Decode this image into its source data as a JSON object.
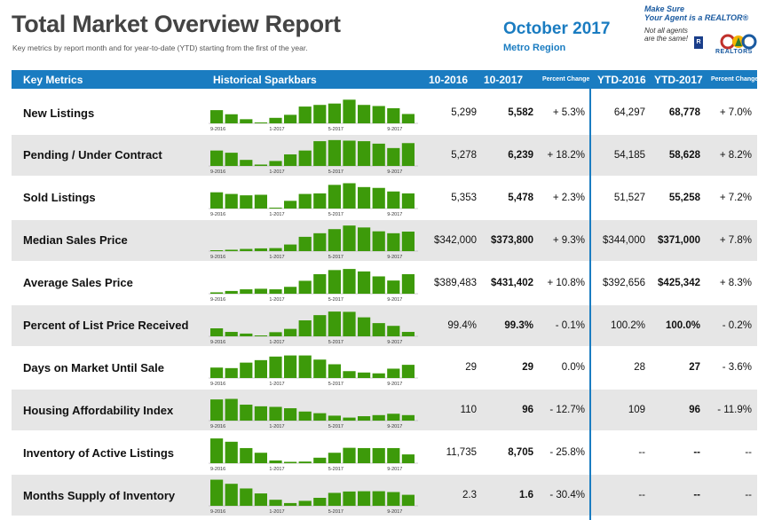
{
  "report": {
    "title": "Total Market Overview Report",
    "subtitle": "Key metrics by report month and for year-to-date (YTD) starting from the first of the year.",
    "period": "October 2017",
    "region": "Metro Region"
  },
  "promo": {
    "line1": "Make Sure",
    "line2": "Your Agent is a REALTOR®",
    "line3": "Not all agents",
    "line4": "are the same!",
    "realtors_text": "REALTORS",
    "rl_mark": "R"
  },
  "header": {
    "key_metrics": "Key Metrics",
    "sparkbars": "Historical Sparkbars",
    "col1": "10-2016",
    "col2": "10-2017",
    "pct": "Percent Change",
    "col3": "YTD-2016",
    "col4": "YTD-2017",
    "pct2": "Percent Change"
  },
  "spark_labels": [
    "9-2016",
    "1-2017",
    "5-2017",
    "9-2017"
  ],
  "colors": {
    "accent": "#1a7cc1",
    "bar": "#3d9a0a",
    "shade": "#e6e6e6"
  },
  "rows": [
    {
      "metric": "New Listings",
      "v2016": "5,299",
      "v2017": "5,582",
      "pct": "+ 5.3%",
      "ytd2016": "64,297",
      "ytd2017": "68,778",
      "ytdpct": "+ 7.0%",
      "spark": [
        0.48,
        0.33,
        0.15,
        0.03,
        0.2,
        0.31,
        0.61,
        0.67,
        0.72,
        0.86,
        0.67,
        0.63,
        0.55,
        0.34
      ]
    },
    {
      "metric": "Pending / Under Contract",
      "v2016": "5,278",
      "v2017": "6,239",
      "pct": "+ 18.2%",
      "ytd2016": "54,185",
      "ytd2017": "58,628",
      "ytdpct": "+ 8.2%",
      "spark": [
        0.56,
        0.48,
        0.22,
        0.05,
        0.18,
        0.42,
        0.56,
        0.9,
        0.94,
        0.92,
        0.9,
        0.81,
        0.65,
        0.83
      ]
    },
    {
      "metric": "Sold Listings",
      "v2016": "5,353",
      "v2017": "5,478",
      "pct": "+ 2.3%",
      "ytd2016": "51,527",
      "ytd2017": "55,258",
      "ytdpct": "+ 7.2%",
      "spark": [
        0.59,
        0.53,
        0.48,
        0.5,
        0.02,
        0.28,
        0.53,
        0.55,
        0.86,
        0.92,
        0.78,
        0.75,
        0.62,
        0.55
      ]
    },
    {
      "metric": "Median Sales Price",
      "v2016": "$342,000",
      "v2017": "$373,800",
      "pct": "+ 9.3%",
      "ytd2016": "$344,000",
      "ytd2017": "$371,000",
      "ytdpct": "+ 7.8%",
      "spark": [
        0.03,
        0.05,
        0.08,
        0.1,
        0.11,
        0.24,
        0.52,
        0.65,
        0.8,
        0.93,
        0.86,
        0.72,
        0.65,
        0.71
      ]
    },
    {
      "metric": "Average Sales Price",
      "v2016": "$389,483",
      "v2017": "$431,402",
      "pct": "+ 10.8%",
      "ytd2016": "$392,656",
      "ytd2017": "$425,342",
      "ytdpct": "+ 8.3%",
      "spark": [
        0.05,
        0.1,
        0.16,
        0.18,
        0.16,
        0.25,
        0.47,
        0.71,
        0.86,
        0.9,
        0.81,
        0.63,
        0.48,
        0.71
      ]
    },
    {
      "metric": "Percent of List Price Received",
      "v2016": "99.4%",
      "v2017": "99.3%",
      "pct": "- 0.1%",
      "ytd2016": "100.2%",
      "ytd2017": "100.0%",
      "ytdpct": "- 0.2%",
      "spark": [
        0.29,
        0.16,
        0.1,
        0.02,
        0.15,
        0.27,
        0.58,
        0.77,
        0.9,
        0.89,
        0.69,
        0.48,
        0.38,
        0.16
      ]
    },
    {
      "metric": "Days on Market Until Sale",
      "v2016": "29",
      "v2017": "29",
      "pct": "0.0%",
      "ytd2016": "28",
      "ytd2017": "27",
      "ytdpct": "- 3.6%",
      "spark": [
        0.38,
        0.36,
        0.56,
        0.65,
        0.78,
        0.82,
        0.82,
        0.67,
        0.5,
        0.25,
        0.2,
        0.17,
        0.34,
        0.48
      ]
    },
    {
      "metric": "Housing Affordability Index",
      "v2016": "110",
      "v2017": "96",
      "pct": "- 12.7%",
      "ytd2016": "109",
      "ytd2017": "96",
      "ytdpct": "- 11.9%",
      "spark": [
        0.77,
        0.79,
        0.58,
        0.52,
        0.5,
        0.45,
        0.33,
        0.27,
        0.18,
        0.11,
        0.16,
        0.2,
        0.25,
        0.2
      ]
    },
    {
      "metric": "Inventory of Active Listings",
      "v2016": "11,735",
      "v2017": "8,705",
      "pct": "- 25.8%",
      "ytd2016": "--",
      "ytd2017": "--",
      "ytdpct": "--",
      "spark": [
        0.9,
        0.78,
        0.55,
        0.38,
        0.1,
        0.05,
        0.06,
        0.2,
        0.38,
        0.56,
        0.55,
        0.55,
        0.55,
        0.32
      ]
    },
    {
      "metric": "Months Supply of Inventory",
      "v2016": "2.3",
      "v2017": "1.6",
      "pct": "- 30.4%",
      "ytd2016": "--",
      "ytd2017": "--",
      "ytdpct": "--",
      "spark": [
        0.95,
        0.8,
        0.63,
        0.45,
        0.22,
        0.1,
        0.18,
        0.29,
        0.47,
        0.52,
        0.53,
        0.53,
        0.5,
        0.4
      ]
    }
  ]
}
